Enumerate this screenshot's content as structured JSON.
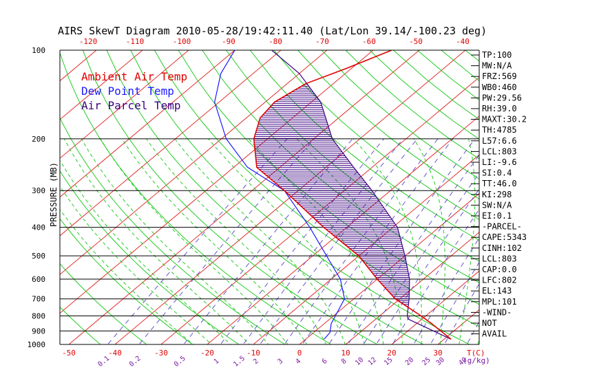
{
  "colors": {
    "ambient": "#e00000",
    "dewpoint": "#1a1aff",
    "parcel": "#3a0080",
    "isotherm": "#e03030",
    "dry_adiabat": "#22cc22",
    "moist_adiabat": "#22cc22",
    "mixing_ratio": "#6655cc",
    "pressure_line": "#000000",
    "hatch": "#3a0080",
    "top_axis": "#e00000",
    "bottom_axis": "#e00000",
    "mixing_label": "#7a1aa0"
  },
  "chart_data": {
    "type": "skewt",
    "title": "AIRS SkewT Diagram 2010-05-28/19:42:11.40 (Lat/Lon 39.14/-100.23 deg)",
    "ylabel": "PRESSURE (MB)",
    "xlabel_unit": "T(C)",
    "mixing_unit": "(g/kg)",
    "pressure_range_mb": [
      100,
      1000
    ],
    "log_pressure": true,
    "temperature_range_bottom_c": [
      -50,
      40
    ],
    "temperature_range_top_c": [
      -120,
      -40
    ],
    "pressure_ticks": [
      100,
      200,
      300,
      400,
      500,
      600,
      700,
      800,
      900,
      1000
    ],
    "pressure_lines": [
      200,
      300,
      400,
      500,
      600,
      700,
      800,
      900
    ],
    "top_ticks": [
      -120,
      -110,
      -100,
      -90,
      -80,
      -70,
      -60,
      -50,
      -40
    ],
    "bottom_ticks": [
      -50,
      -40,
      -30,
      -20,
      -10,
      0,
      10,
      20,
      30
    ],
    "mixing_ratio_labels": [
      "0.1",
      "0.2",
      "0.5",
      "1",
      "1.5",
      "2",
      "3",
      "4",
      "6",
      "8",
      "10",
      "12",
      "15",
      "20",
      "25",
      "30",
      "40"
    ],
    "mixing_ratio_values": [
      0.1,
      0.2,
      0.5,
      1,
      1.5,
      2,
      3,
      4,
      6,
      8,
      10,
      12,
      15,
      20,
      25,
      30,
      40
    ],
    "legend": [
      "Ambient Air Temp",
      "Dew Point Temp",
      "Air Parcel Temp"
    ],
    "legend_placement": "top-left",
    "series": [
      {
        "name": "Ambient Air Temp",
        "points": [
          [
            960,
            31.5
          ],
          [
            850,
            23.3
          ],
          [
            800,
            19
          ],
          [
            700,
            9
          ],
          [
            600,
            0
          ],
          [
            500,
            -10
          ],
          [
            400,
            -25
          ],
          [
            300,
            -43
          ],
          [
            250,
            -55
          ],
          [
            200,
            -63
          ],
          [
            170,
            -67
          ],
          [
            150,
            -68
          ],
          [
            130,
            -66
          ],
          [
            115,
            -61
          ],
          [
            100,
            -56
          ]
        ]
      },
      {
        "name": "Dew Point Temp",
        "points": [
          [
            960,
            4
          ],
          [
            910,
            3.5
          ],
          [
            850,
            1.5
          ],
          [
            700,
            -2
          ],
          [
            600,
            -8
          ],
          [
            500,
            -17
          ],
          [
            400,
            -28
          ],
          [
            300,
            -43
          ],
          [
            250,
            -57
          ],
          [
            200,
            -69
          ],
          [
            150,
            -81
          ],
          [
            120,
            -87
          ],
          [
            100,
            -90
          ]
        ]
      },
      {
        "name": "Air Parcel Temp",
        "points": [
          [
            960,
            31.5
          ],
          [
            820,
            17
          ],
          [
            800,
            16
          ],
          [
            700,
            12
          ],
          [
            600,
            7
          ],
          [
            500,
            0
          ],
          [
            400,
            -9
          ],
          [
            300,
            -24
          ],
          [
            250,
            -34
          ],
          [
            200,
            -46
          ],
          [
            150,
            -58
          ],
          [
            120,
            -70
          ],
          [
            100,
            -82
          ]
        ]
      }
    ],
    "indices": [
      "TP:100",
      "MW:N/A",
      "FRZ:569",
      "WB0:460",
      "PW:29.56",
      "RH:39.0",
      "MAXT:30.2",
      "TH:4785",
      "L57:6.6",
      "LCL:803",
      "LI:-9.6",
      "SI:0.4",
      "TT:46.0",
      "KI:298",
      "SW:N/A",
      "EI:0.1",
      "-PARCEL-",
      "CAPE:5343",
      "CINH:102",
      "LCL:803",
      "CAP:0.0",
      "LFC:802",
      "EL:143",
      "MPL:101",
      "-WIND-",
      "NOT",
      "AVAIL"
    ]
  }
}
